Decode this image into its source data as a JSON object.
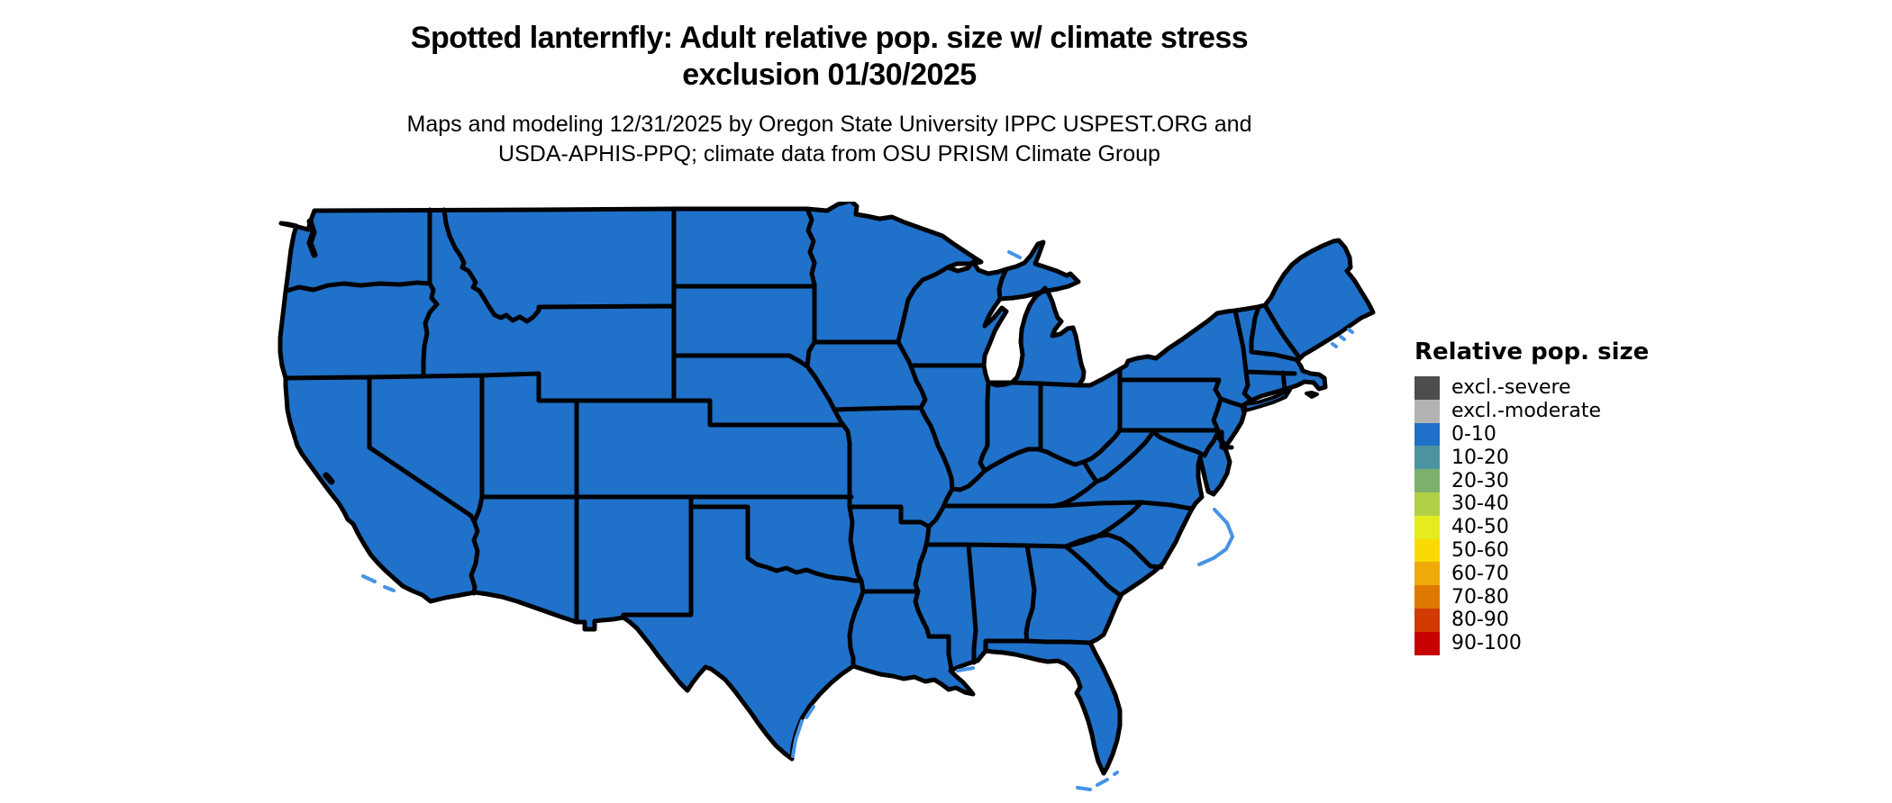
{
  "title": {
    "line1": "Spotted lanternfly: Adult relative pop. size w/ climate stress",
    "line2": "exclusion 01/30/2025"
  },
  "subtitle": {
    "line1": "Maps and modeling 12/31/2025 by Oregon State University IPPC USPEST.ORG and",
    "line2": "USDA-APHIS-PPQ; climate data from OSU PRISM Climate Group"
  },
  "legend": {
    "title": "Relative pop. size",
    "items": [
      {
        "label": "excl.-severe",
        "color": "#4d4d4d"
      },
      {
        "label": "excl.-moderate",
        "color": "#b3b3b3"
      },
      {
        "label": "0-10",
        "color": "#2071c9"
      },
      {
        "label": "10-20",
        "color": "#4d92a0"
      },
      {
        "label": "20-30",
        "color": "#7cb16d"
      },
      {
        "label": "30-40",
        "color": "#b2d046"
      },
      {
        "label": "40-50",
        "color": "#e5ec1e"
      },
      {
        "label": "50-60",
        "color": "#fada00"
      },
      {
        "label": "60-70",
        "color": "#eeab08"
      },
      {
        "label": "70-80",
        "color": "#e07800"
      },
      {
        "label": "80-90",
        "color": "#d13b00"
      },
      {
        "label": "90-100",
        "color": "#c90000"
      }
    ]
  },
  "map": {
    "fill": "#2071c9",
    "border": "#000000",
    "island_color": "#4593e6",
    "water": "#ffffff",
    "region": "Conterminous United States",
    "all_states_category": "0-10"
  },
  "map_data": {
    "type": "choropleth",
    "region": "CONUS state map",
    "legend_position": "right",
    "note_all_visible_states_rendered_in_category": "0-10"
  }
}
